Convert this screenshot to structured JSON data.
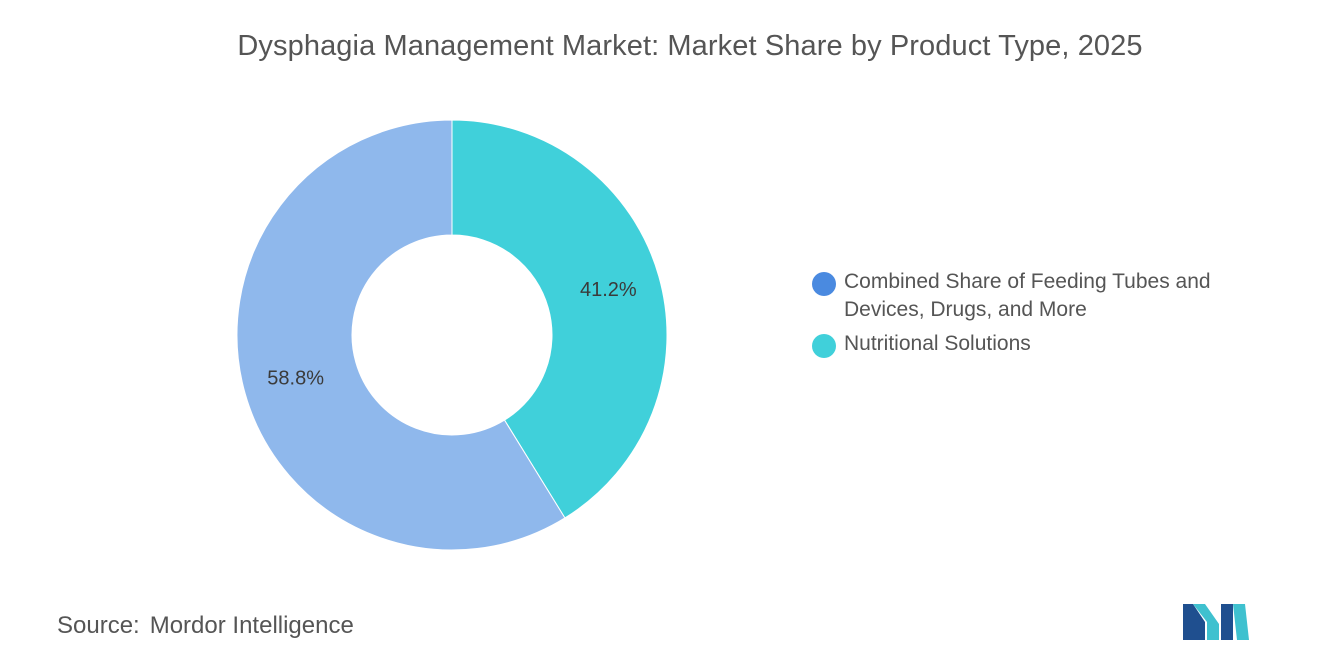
{
  "chart_data": {
    "type": "pie",
    "style": "donut",
    "title": "Dysphagia Management Market: Market Share by Product Type, 2025",
    "series": [
      {
        "name": "Combined Share of Feeding Tubes and Devices, Drugs, and More",
        "value": 58.8,
        "label": "58.8%",
        "color": "#8fb8ec",
        "legend_color": "#4a8ae0"
      },
      {
        "name": "Nutritional Solutions",
        "value": 41.2,
        "label": "41.2%",
        "color": "#40d0da",
        "legend_color": "#40d0da"
      }
    ],
    "legend_position": "right"
  },
  "source": {
    "key": "Source:",
    "value": "Mordor Intelligence"
  },
  "logo": {
    "icon": "mordor-intelligence-logo-icon",
    "colors": [
      "#1f4f8f",
      "#3fc1cf"
    ]
  }
}
